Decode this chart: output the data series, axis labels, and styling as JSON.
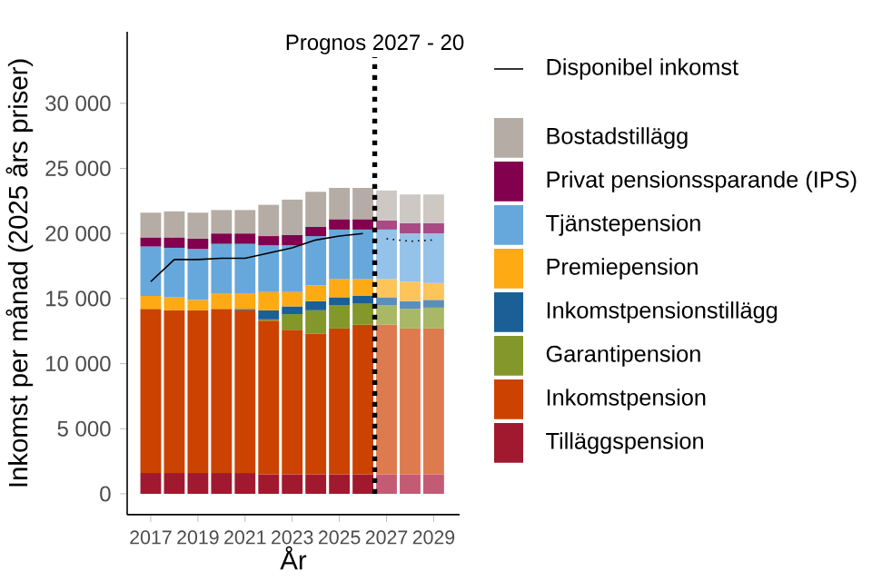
{
  "chart_data": {
    "type": "bar",
    "stacked": true,
    "xlabel": "År",
    "ylabel": "Inkomst per månad (2025 års priser)",
    "x": [
      2017,
      2018,
      2019,
      2020,
      2021,
      2022,
      2023,
      2024,
      2025,
      2026,
      2027,
      2028,
      2029
    ],
    "xlim": [
      2016,
      2030.1
    ],
    "xticks": [
      2017,
      2019,
      2021,
      2023,
      2025,
      2027,
      2029
    ],
    "ylim": [
      -1600,
      35500
    ],
    "yticks": [
      0,
      {
        "value": 5000,
        "label": "5 000"
      },
      {
        "value": 10000,
        "label": "10 000"
      },
      {
        "value": 15000,
        "label": "15 000"
      },
      {
        "value": 20000,
        "label": "20 000"
      },
      {
        "value": 25000,
        "label": "25 000"
      },
      {
        "value": 30000,
        "label": "30 000"
      }
    ],
    "legend": "right",
    "series": [
      {
        "name": "Tilläggspension",
        "color": "#a0192e",
        "colors": [
          "#a0192e",
          "#a0192e",
          "#a0192e",
          "#a0192e",
          "#a0192e",
          "#a0192e",
          "#a0192e",
          "#a0192e",
          "#a0192e",
          "#a0192e",
          "#c45b74",
          "#c45b74",
          "#c45b74"
        ],
        "values": [
          1600,
          1600,
          1600,
          1600,
          1600,
          1500,
          1500,
          1500,
          1500,
          1500,
          1500,
          1500,
          1500
        ]
      },
      {
        "name": "Inkomstpension",
        "color": "#cc4200",
        "colors": [
          "#cc4200",
          "#cc4200",
          "#cc4200",
          "#cc4200",
          "#cc4200",
          "#cc4200",
          "#cc4200",
          "#cc4200",
          "#cc4200",
          "#cc4200",
          "#de7b4e",
          "#de7b4e",
          "#de7b4e"
        ],
        "values": [
          12600,
          12500,
          12500,
          12600,
          12500,
          11800,
          11100,
          10800,
          11200,
          11500,
          11500,
          11200,
          11200
        ]
      },
      {
        "name": "Garantipension",
        "color": "#83972a",
        "colors": [
          "#83972a",
          "#83972a",
          "#83972a",
          "#83972a",
          "#83972a",
          "#83972a",
          "#83972a",
          "#83972a",
          "#83972a",
          "#83972a",
          "#a8b866",
          "#a8b866",
          "#a8b866"
        ],
        "values": [
          0,
          0,
          0,
          0,
          0,
          100,
          1200,
          1800,
          1800,
          1600,
          1500,
          1500,
          1600
        ]
      },
      {
        "name": "Inkomstpensionstillägg",
        "color": "#1a5f96",
        "colors": [
          "#1a5f96",
          "#1a5f96",
          "#1a5f96",
          "#1a5f96",
          "#1a5f96",
          "#1a5f96",
          "#1a5f96",
          "#1a5f96",
          "#1a5f96",
          "#1a5f96",
          "#5b8fbb",
          "#5b8fbb",
          "#5b8fbb"
        ],
        "values": [
          0,
          0,
          0,
          0,
          100,
          700,
          600,
          700,
          600,
          600,
          600,
          600,
          600
        ]
      },
      {
        "name": "Premiepension",
        "color": "#fdaa14",
        "colors": [
          "#fdaa14",
          "#fdaa14",
          "#fdaa14",
          "#fdaa14",
          "#fdaa14",
          "#fdaa14",
          "#fdaa14",
          "#fdaa14",
          "#fdaa14",
          "#fdaa14",
          "#fdc45a",
          "#fdc45a",
          "#fdc45a"
        ],
        "values": [
          1000,
          1000,
          800,
          1200,
          1200,
          1400,
          1100,
          1200,
          1400,
          1300,
          1400,
          1500,
          1300
        ]
      },
      {
        "name": "Tjänstepension",
        "color": "#67a8dc",
        "colors": [
          "#67a8dc",
          "#67a8dc",
          "#67a8dc",
          "#67a8dc",
          "#67a8dc",
          "#67a8dc",
          "#67a8dc",
          "#67a8dc",
          "#67a8dc",
          "#67a8dc",
          "#95c2e8",
          "#95c2e8",
          "#95c2e8"
        ],
        "values": [
          3800,
          3800,
          3900,
          3800,
          3800,
          3600,
          3600,
          3800,
          3800,
          3800,
          3800,
          3700,
          3800
        ]
      },
      {
        "name": "Privat pensionssparande (IPS)",
        "color": "#82004e",
        "colors": [
          "#82004e",
          "#82004e",
          "#82004e",
          "#82004e",
          "#82004e",
          "#82004e",
          "#82004e",
          "#82004e",
          "#82004e",
          "#82004e",
          "#a84a84",
          "#a84a84",
          "#a84a84"
        ],
        "values": [
          700,
          800,
          800,
          800,
          800,
          700,
          800,
          700,
          800,
          800,
          700,
          800,
          800
        ]
      },
      {
        "name": "Bostadstillägg",
        "color": "#b5ada5",
        "colors": [
          "#b5ada5",
          "#b5ada5",
          "#b5ada5",
          "#b5ada5",
          "#b5ada5",
          "#b5ada5",
          "#b5ada5",
          "#b5ada5",
          "#b5ada5",
          "#b5ada5",
          "#cdc8c3",
          "#cdc8c3",
          "#cdc8c3"
        ],
        "values": [
          1900,
          2000,
          2000,
          1800,
          1800,
          2400,
          2700,
          2700,
          2400,
          2400,
          2300,
          2200,
          2200
        ]
      },
      {
        "name": "Disponibel inkomst",
        "type": "line",
        "color": "#000000",
        "line_style": "solid",
        "x": [
          2017,
          2018,
          2019,
          2020,
          2021,
          2022,
          2023,
          2024,
          2025,
          2026
        ],
        "values": [
          16300,
          18000,
          18000,
          18100,
          18100,
          18500,
          18900,
          19500,
          19800,
          20000
        ]
      },
      {
        "type": "line",
        "color": "#000000",
        "line_style": "dotted",
        "x": [
          2027,
          2028,
          2029
        ],
        "values": [
          19600,
          19400,
          19500
        ]
      }
    ],
    "ref_lines": [
      {
        "axis": "x",
        "value": 2026.5,
        "label": "Prognos 2027 - 20",
        "line_style": "dotted",
        "color": "#000000"
      }
    ]
  }
}
